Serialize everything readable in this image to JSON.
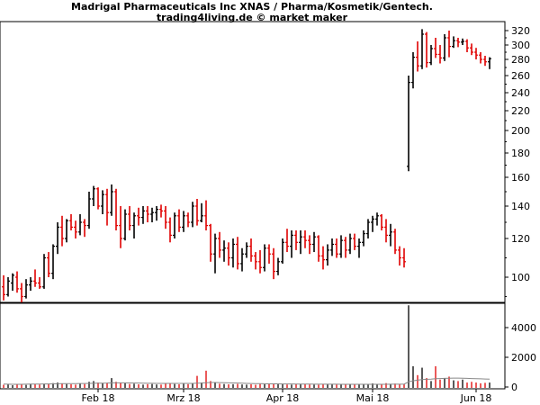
{
  "header": {
    "title_line1": "Madrigal Pharmaceuticals Inc XNAS / Pharma/Kosmetik/Gentech.",
    "title_line2": "trading4living.de © market maker"
  },
  "colors": {
    "up": "#000000",
    "down": "#e00000",
    "axis": "#000000",
    "volume_ma": "#888888"
  },
  "chart_data": [
    {
      "type": "ohlc-bar",
      "name": "price",
      "y_ticks": [
        100,
        120,
        140,
        160,
        180,
        200,
        220,
        240,
        260,
        280,
        300,
        320
      ],
      "ylim": [
        88,
        328
      ],
      "x_labels": [
        {
          "label": "Feb 18",
          "bar": 22
        },
        {
          "label": "Mrz 18",
          "bar": 41
        },
        {
          "label": "Apr 18",
          "bar": 63
        },
        {
          "label": "Mai 18",
          "bar": 83
        },
        {
          "label": "Jun 18",
          "bar": 106
        }
      ],
      "grid": false,
      "bars": [
        [
          1,
          95,
          101,
          88,
          91
        ],
        [
          2,
          91,
          100,
          90,
          98
        ],
        [
          3,
          97,
          102,
          93,
          101
        ],
        [
          4,
          100,
          103,
          92,
          94
        ],
        [
          5,
          94,
          97,
          87,
          90
        ],
        [
          6,
          90,
          99,
          89,
          96
        ],
        [
          7,
          96,
          100,
          93,
          98
        ],
        [
          8,
          98,
          104,
          95,
          97
        ],
        [
          9,
          97,
          100,
          94,
          95
        ],
        [
          10,
          95,
          112,
          94,
          110
        ],
        [
          11,
          110,
          113,
          100,
          102
        ],
        [
          12,
          102,
          117,
          99,
          116
        ],
        [
          13,
          116,
          130,
          112,
          127
        ],
        [
          14,
          127,
          134,
          116,
          120
        ],
        [
          15,
          120,
          132,
          118,
          131
        ],
        [
          16,
          131,
          135,
          125,
          127
        ],
        [
          17,
          127,
          131,
          120,
          124
        ],
        [
          18,
          124,
          135,
          122,
          130
        ],
        [
          19,
          130,
          132,
          121,
          128
        ],
        [
          20,
          128,
          150,
          126,
          145
        ],
        [
          21,
          145,
          154,
          140,
          152
        ],
        [
          22,
          152,
          153,
          138,
          140
        ],
        [
          23,
          140,
          151,
          135,
          148
        ],
        [
          24,
          148,
          152,
          128,
          136
        ],
        [
          25,
          136,
          155,
          134,
          150
        ],
        [
          26,
          150,
          152,
          125,
          128
        ],
        [
          27,
          128,
          140,
          115,
          120
        ],
        [
          28,
          120,
          138,
          119,
          135
        ],
        [
          29,
          135,
          140,
          125,
          128
        ],
        [
          30,
          128,
          136,
          120,
          134
        ],
        [
          31,
          134,
          139,
          128,
          133
        ],
        [
          32,
          133,
          140,
          129,
          137
        ],
        [
          33,
          137,
          140,
          130,
          135
        ],
        [
          34,
          135,
          139,
          130,
          136
        ],
        [
          35,
          136,
          140,
          131,
          138
        ],
        [
          36,
          138,
          141,
          133,
          137
        ],
        [
          37,
          137,
          140,
          126,
          130
        ],
        [
          38,
          130,
          133,
          118,
          122
        ],
        [
          39,
          122,
          136,
          120,
          134
        ],
        [
          40,
          134,
          138,
          124,
          127
        ],
        [
          41,
          127,
          137,
          124,
          134
        ],
        [
          42,
          134,
          136,
          127,
          130
        ],
        [
          43,
          130,
          143,
          127,
          140
        ],
        [
          44,
          140,
          145,
          128,
          131
        ],
        [
          45,
          131,
          142,
          130,
          134
        ],
        [
          46,
          134,
          144,
          125,
          128
        ],
        [
          47,
          128,
          129,
          108,
          112
        ],
        [
          48,
          112,
          123,
          102,
          120
        ],
        [
          49,
          120,
          124,
          110,
          114
        ],
        [
          50,
          114,
          119,
          108,
          115
        ],
        [
          51,
          115,
          118,
          106,
          110
        ],
        [
          52,
          110,
          120,
          105,
          117
        ],
        [
          53,
          117,
          121,
          104,
          107
        ],
        [
          54,
          107,
          115,
          103,
          112
        ],
        [
          55,
          112,
          118,
          110,
          116
        ],
        [
          56,
          116,
          120,
          108,
          111
        ],
        [
          57,
          111,
          113,
          104,
          108
        ],
        [
          58,
          108,
          114,
          102,
          105
        ],
        [
          59,
          105,
          117,
          103,
          115
        ],
        [
          60,
          115,
          117,
          107,
          112
        ],
        [
          61,
          112,
          115,
          99,
          103
        ],
        [
          62,
          103,
          110,
          101,
          108
        ],
        [
          63,
          108,
          120,
          107,
          118
        ],
        [
          64,
          118,
          126,
          113,
          116
        ],
        [
          65,
          116,
          125,
          110,
          122
        ],
        [
          66,
          122,
          125,
          114,
          118
        ],
        [
          67,
          118,
          125,
          112,
          121
        ],
        [
          68,
          121,
          125,
          115,
          119
        ],
        [
          69,
          119,
          122,
          112,
          117
        ],
        [
          70,
          117,
          124,
          113,
          121
        ],
        [
          71,
          121,
          122,
          108,
          111
        ],
        [
          72,
          111,
          116,
          104,
          109
        ],
        [
          73,
          109,
          117,
          106,
          114
        ],
        [
          74,
          114,
          120,
          111,
          117
        ],
        [
          75,
          117,
          120,
          110,
          112
        ],
        [
          76,
          112,
          122,
          110,
          119
        ],
        [
          77,
          119,
          121,
          110,
          114
        ],
        [
          78,
          114,
          123,
          112,
          120
        ],
        [
          79,
          120,
          123,
          114,
          116
        ],
        [
          80,
          116,
          120,
          110,
          118
        ],
        [
          81,
          118,
          125,
          116,
          123
        ],
        [
          82,
          123,
          132,
          120,
          130
        ],
        [
          83,
          130,
          134,
          124,
          132
        ],
        [
          84,
          132,
          136,
          128,
          134
        ],
        [
          85,
          134,
          135,
          125,
          127
        ],
        [
          86,
          127,
          132,
          118,
          122
        ],
        [
          87,
          122,
          129,
          116,
          124
        ],
        [
          88,
          124,
          126,
          112,
          114
        ],
        [
          89,
          114,
          116,
          106,
          110
        ],
        [
          90,
          110,
          115,
          105,
          108
        ],
        [
          91,
          169,
          260,
          165,
          252
        ],
        [
          92,
          252,
          290,
          245,
          283
        ],
        [
          93,
          283,
          305,
          265,
          272
        ],
        [
          94,
          272,
          322,
          268,
          315
        ],
        [
          95,
          315,
          318,
          270,
          276
        ],
        [
          96,
          276,
          300,
          273,
          295
        ],
        [
          97,
          295,
          310,
          282,
          287
        ],
        [
          98,
          287,
          300,
          275,
          282
        ],
        [
          99,
          282,
          315,
          278,
          310
        ],
        [
          100,
          310,
          320,
          283,
          298
        ],
        [
          101,
          298,
          312,
          296,
          306
        ],
        [
          102,
          306,
          310,
          297,
          304
        ],
        [
          103,
          304,
          309,
          300,
          305
        ],
        [
          104,
          305,
          308,
          290,
          296
        ],
        [
          105,
          296,
          302,
          286,
          290
        ],
        [
          106,
          290,
          296,
          280,
          286
        ],
        [
          107,
          286,
          290,
          275,
          280
        ],
        [
          108,
          280,
          285,
          272,
          277
        ],
        [
          109,
          277,
          283,
          268,
          281
        ]
      ]
    },
    {
      "type": "bar",
      "name": "volume",
      "y_ticks": [
        0,
        2000,
        4000
      ],
      "ylim": [
        0,
        5500
      ],
      "values": [
        150,
        180,
        120,
        200,
        160,
        140,
        180,
        200,
        170,
        190,
        220,
        260,
        300,
        240,
        200,
        180,
        160,
        220,
        200,
        350,
        400,
        300,
        250,
        280,
        600,
        350,
        300,
        250,
        200,
        220,
        180,
        160,
        190,
        200,
        170,
        160,
        220,
        250,
        200,
        180,
        210,
        190,
        230,
        750,
        300,
        1100,
        400,
        300,
        220,
        200,
        180,
        190,
        210,
        170,
        160,
        180,
        150,
        200,
        190,
        210,
        240,
        180,
        200,
        170,
        160,
        190,
        180,
        200,
        170,
        160,
        150,
        200,
        190,
        180,
        170,
        160,
        190,
        180,
        170,
        160,
        180,
        210,
        240,
        200,
        180,
        260,
        200,
        230,
        180,
        200,
        5500,
        1400,
        800,
        1300,
        600,
        400,
        1400,
        500,
        600,
        700,
        450,
        400,
        500,
        300,
        350,
        300,
        250,
        280,
        300
      ],
      "moving_average": [
        200,
        190,
        185,
        183,
        185,
        190,
        195,
        198,
        200,
        203,
        207,
        213,
        220,
        225,
        225,
        225,
        228,
        232,
        238,
        245,
        250,
        255,
        258,
        262,
        275,
        280,
        282,
        280,
        275,
        268,
        262,
        255,
        250,
        248,
        246,
        245,
        245,
        246,
        245,
        243,
        242,
        241,
        243,
        260,
        265,
        290,
        300,
        300,
        295,
        288,
        280,
        272,
        263,
        255,
        245,
        238,
        230,
        225,
        218,
        213,
        212,
        210,
        208,
        205,
        203,
        200,
        198,
        196,
        195,
        193,
        190,
        190,
        189,
        188,
        187,
        185,
        184,
        183,
        182,
        180,
        180,
        181,
        183,
        183,
        183,
        185,
        186,
        188,
        188,
        190,
        350,
        420,
        460,
        500,
        520,
        530,
        560,
        570,
        580,
        590,
        595,
        595,
        590,
        580,
        570,
        560,
        550,
        540,
        530
      ]
    }
  ]
}
